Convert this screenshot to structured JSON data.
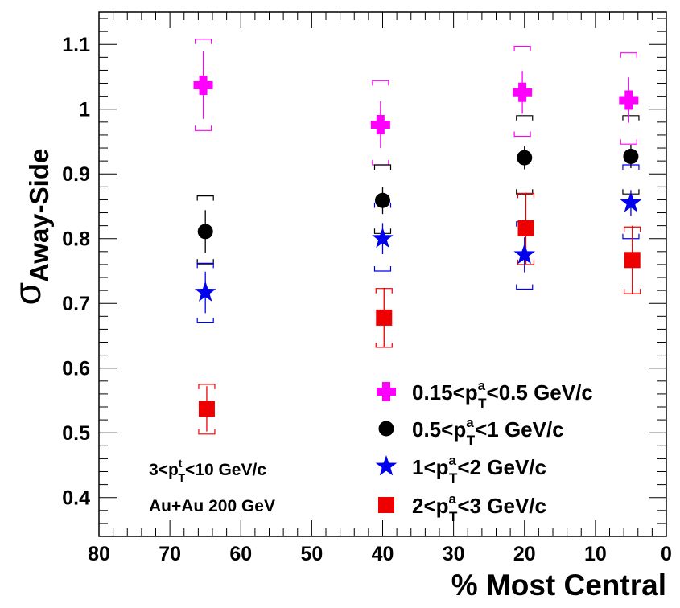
{
  "chart_data": {
    "type": "scatter",
    "title": "",
    "ylabel": {
      "symbol": "σ",
      "subscript": "Away-Side"
    },
    "xlabel": "% Most Central",
    "xlim": [
      80,
      0
    ],
    "ylim": [
      0.34,
      1.15
    ],
    "x_ticks": [
      "80",
      "70",
      "60",
      "50",
      "40",
      "30",
      "20",
      "10",
      "0"
    ],
    "y_ticks": [
      "0.4",
      "0.5",
      "0.6",
      "0.7",
      "0.8",
      "0.9",
      "1",
      "1.1"
    ],
    "series": [
      {
        "name": "0.15<p_T^a<0.5 GeV/c",
        "legend": {
          "pre": "0.15<p",
          "sub": "T",
          "sup": "a",
          "post": "<0.5 GeV/c"
        },
        "marker": "cross",
        "color": "#ff00ff",
        "points": [
          {
            "x": 65,
            "y": 1.037,
            "err": 0.052,
            "sys_lo": 0.967,
            "sys_hi": 1.108
          },
          {
            "x": 40,
            "y": 0.976,
            "err": 0.036,
            "sys_lo": 0.914,
            "sys_hi": 1.044
          },
          {
            "x": 20,
            "y": 1.026,
            "err": 0.033,
            "sys_lo": 0.958,
            "sys_hi": 1.097
          },
          {
            "x": 5,
            "y": 1.014,
            "err": 0.035,
            "sys_lo": 0.946,
            "sys_hi": 1.087
          }
        ]
      },
      {
        "name": "0.5<p_T^a<1 GeV/c",
        "legend": {
          "pre": "0.5<p",
          "sub": "T",
          "sup": "a",
          "post": "<1 GeV/c"
        },
        "marker": "circle",
        "color": "#000000",
        "points": [
          {
            "x": 65,
            "y": 0.811,
            "err": 0.033,
            "sys_lo": 0.761,
            "sys_hi": 0.866
          },
          {
            "x": 40,
            "y": 0.859,
            "err": 0.021,
            "sys_lo": 0.808,
            "sys_hi": 0.914
          },
          {
            "x": 20,
            "y": 0.925,
            "err": 0.018,
            "sys_lo": 0.869,
            "sys_hi": 0.99
          },
          {
            "x": 5,
            "y": 0.927,
            "err": 0.018,
            "sys_lo": 0.869,
            "sys_hi": 0.99
          }
        ]
      },
      {
        "name": "1<p_T^a<2 GeV/c",
        "legend": {
          "pre": "1<p",
          "sub": "T",
          "sup": "a",
          "post": "<2 GeV/c"
        },
        "marker": "star",
        "color": "#0000ee",
        "points": [
          {
            "x": 65,
            "y": 0.717,
            "err": 0.032,
            "sys_lo": 0.67,
            "sys_hi": 0.762
          },
          {
            "x": 40,
            "y": 0.8,
            "err": 0.024,
            "sys_lo": 0.75,
            "sys_hi": 0.855
          },
          {
            "x": 20,
            "y": 0.775,
            "err": 0.027,
            "sys_lo": 0.722,
            "sys_hi": 0.826
          },
          {
            "x": 5,
            "y": 0.855,
            "err": 0.02,
            "sys_lo": 0.8,
            "sys_hi": 0.914
          }
        ]
      },
      {
        "name": "2<p_T^a<3 GeV/c",
        "legend": {
          "pre": "2<p",
          "sub": "T",
          "sup": "a",
          "post": "<3 GeV/c"
        },
        "marker": "square",
        "color": "#ee0000",
        "points": [
          {
            "x": 65,
            "y": 0.537,
            "err": 0.035,
            "sys_lo": 0.498,
            "sys_hi": 0.575
          },
          {
            "x": 40,
            "y": 0.678,
            "err": 0.046,
            "sys_lo": 0.632,
            "sys_hi": 0.723
          },
          {
            "x": 20,
            "y": 0.816,
            "err": 0.055,
            "sys_lo": 0.76,
            "sys_hi": 0.87
          },
          {
            "x": 5,
            "y": 0.767,
            "err": 0.053,
            "sys_lo": 0.715,
            "sys_hi": 0.818
          }
        ]
      }
    ],
    "annotations": [
      {
        "pre": "3<p",
        "sub": "T",
        "sup": "t",
        "post": "<10 GeV/c"
      },
      {
        "text": "Au+Au 200 GeV"
      }
    ]
  }
}
